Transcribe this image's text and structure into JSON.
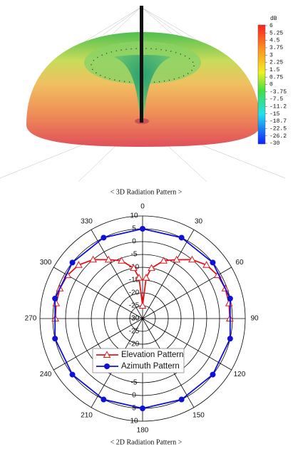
{
  "chart_data": [
    {
      "type": "surface3d",
      "caption": "< 3D Radiation Pattern >",
      "colorbar_label": "dB",
      "colorbar_ticks": [
        6,
        5.25,
        4.5,
        3.75,
        3,
        2.25,
        1.5,
        0.75,
        0,
        -3.75,
        -7.5,
        -11.2,
        -15,
        -18.7,
        -22.5,
        -26.2,
        -30
      ]
    },
    {
      "type": "polar",
      "caption": "< 2D Radiation Pattern >",
      "rlim": [
        -30,
        10
      ],
      "rticks": [
        -30,
        -25,
        -20,
        -15,
        -10,
        -5,
        0,
        5,
        10
      ],
      "thetaticks": [
        0,
        30,
        60,
        90,
        120,
        150,
        180,
        210,
        240,
        270,
        300,
        330
      ],
      "grid": true,
      "series": [
        {
          "name": "Elevation Pattern",
          "color": "#e8141c",
          "marker": "triangle",
          "theta": [
            270,
            280,
            290,
            300,
            310,
            320,
            330,
            340,
            350,
            355,
            0,
            5,
            10,
            20,
            30,
            40,
            50,
            60,
            70,
            80,
            90
          ],
          "values": [
            4,
            4.2,
            4.3,
            3.8,
            2.5,
            0,
            -3.5,
            -6,
            -10,
            -14,
            -25,
            -14,
            -10,
            -6,
            -3.5,
            0,
            2.5,
            3.8,
            4.3,
            4.2,
            4
          ]
        },
        {
          "name": "Azimuth Pattern",
          "color": "#1010d8",
          "marker": "circle",
          "theta": [
            0,
            25.7,
            51.4,
            77.1,
            102.9,
            128.6,
            154.3,
            180,
            205.7,
            231.4,
            257.1,
            282.9,
            308.6,
            334.3
          ],
          "values": [
            5,
            5,
            5,
            5,
            5,
            5,
            5,
            5,
            5,
            5,
            5,
            5,
            5,
            5
          ]
        }
      ]
    }
  ]
}
